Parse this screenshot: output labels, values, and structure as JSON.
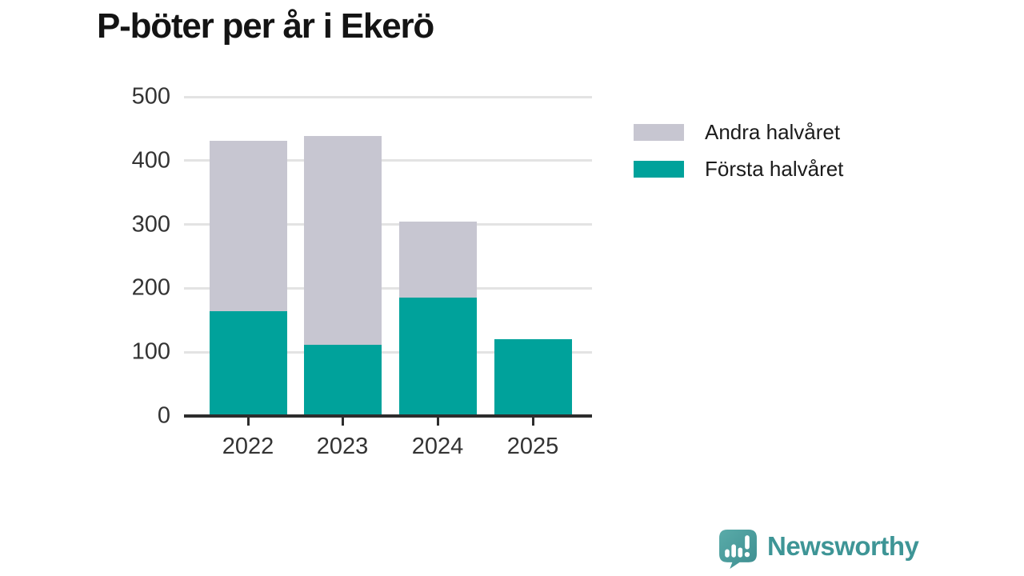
{
  "chart_data": {
    "type": "bar",
    "stacked": true,
    "title": "P-böter per år i Ekerö",
    "categories": [
      "2022",
      "2023",
      "2024",
      "2025"
    ],
    "series": [
      {
        "name": "Första halvåret",
        "color": "#00a29b",
        "values": [
          164,
          112,
          186,
          120
        ]
      },
      {
        "name": "Andra halvåret",
        "color": "#c7c6d1",
        "values": [
          267,
          326,
          118,
          0
        ]
      }
    ],
    "xlabel": "",
    "ylabel": "",
    "ylim": [
      0,
      500
    ],
    "yticks": [
      0,
      100,
      200,
      300,
      400,
      500
    ],
    "grid": true,
    "legend_position": "right"
  },
  "legend": {
    "items": [
      {
        "label": "Andra halvåret",
        "color": "#c7c6d1"
      },
      {
        "label": "Första halvåret",
        "color": "#00a29b"
      }
    ]
  },
  "footer": {
    "brand": "Newsworthy",
    "brand_color": "#3e9596"
  },
  "colors": {
    "first_half": "#00a29b",
    "second_half": "#c7c6d1",
    "gridline": "#e3e3e3",
    "axis": "#2d2d2d",
    "title_text": "#141414",
    "axis_text": "#333333"
  }
}
